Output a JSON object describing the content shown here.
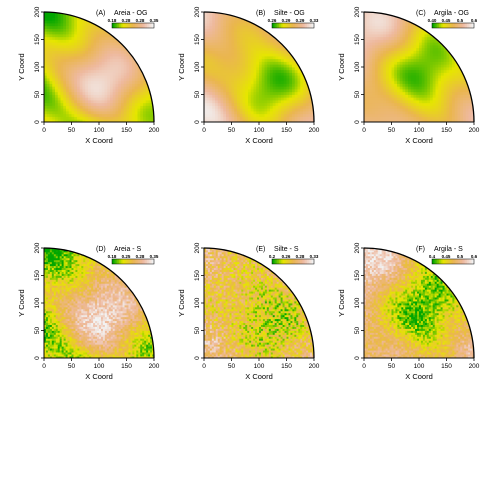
{
  "figure": {
    "layout": {
      "rows": 2,
      "cols": 3
    }
  },
  "chart_data": [
    {
      "type": "heatmap",
      "panel_label": "(A)",
      "title": "Areia - OG",
      "xlabel": "X Coord",
      "ylabel": "Y Coord",
      "xlim": [
        0,
        200
      ],
      "ylim": [
        0,
        200
      ],
      "xticks": [
        "0",
        "50",
        "100",
        "150",
        "200"
      ],
      "yticks": [
        "0",
        "50",
        "100",
        "150",
        "200"
      ],
      "legend_ticks": [
        "0.18",
        "0.28",
        "0.28",
        "0.35"
      ],
      "colormap": [
        "#00A600",
        "#E6E600",
        "#EAB64E",
        "#EEB99F",
        "#F2F2F2"
      ],
      "domain_shape": "quarter-circle",
      "smooth": true,
      "pattern": "high",
      "seed": 11
    },
    {
      "type": "heatmap",
      "panel_label": "(B)",
      "title": "Silte - OG",
      "xlabel": "X Coord",
      "ylabel": "Y Coord",
      "xlim": [
        0,
        200
      ],
      "ylim": [
        0,
        200
      ],
      "xticks": [
        "0",
        "50",
        "100",
        "150",
        "200"
      ],
      "yticks": [
        "0",
        "50",
        "100",
        "150",
        "200"
      ],
      "legend_ticks": [
        "0.26",
        "0.29",
        "0.29",
        "0.33"
      ],
      "colormap": [
        "#00A600",
        "#E6E600",
        "#EAB64E",
        "#EEB99F",
        "#F2F2F2"
      ],
      "domain_shape": "quarter-circle",
      "smooth": true,
      "pattern": "low",
      "seed": 23
    },
    {
      "type": "heatmap",
      "panel_label": "(C)",
      "title": "Argila - OG",
      "xlabel": "X Coord",
      "ylabel": "Y Coord",
      "xlim": [
        0,
        200
      ],
      "ylim": [
        0,
        200
      ],
      "xticks": [
        "0",
        "50",
        "100",
        "150",
        "200"
      ],
      "yticks": [
        "0",
        "50",
        "100",
        "150",
        "200"
      ],
      "legend_ticks": [
        "0.40",
        "0.45",
        "0.5",
        "0.6"
      ],
      "colormap": [
        "#00A600",
        "#E6E600",
        "#EAB64E",
        "#EEB99F",
        "#F2F2F2"
      ],
      "domain_shape": "quarter-circle",
      "smooth": true,
      "pattern": "low",
      "seed": 37
    },
    {
      "type": "heatmap",
      "panel_label": "(D)",
      "title": "Areia - S",
      "xlabel": "X Coord",
      "ylabel": "Y Coord",
      "xlim": [
        0,
        200
      ],
      "ylim": [
        0,
        200
      ],
      "xticks": [
        "0",
        "50",
        "100",
        "150",
        "200"
      ],
      "yticks": [
        "0",
        "50",
        "100",
        "150",
        "200"
      ],
      "legend_ticks": [
        "0.18",
        "0.25",
        "0.28",
        "0.35"
      ],
      "colormap": [
        "#00A600",
        "#E6E600",
        "#EAB64E",
        "#EEB99F",
        "#F2F2F2"
      ],
      "domain_shape": "quarter-circle",
      "smooth": false,
      "pattern": "high",
      "seed": 11
    },
    {
      "type": "heatmap",
      "panel_label": "(E)",
      "title": "Silte - S",
      "xlabel": "X Coord",
      "ylabel": "Y Coord",
      "xlim": [
        0,
        200
      ],
      "ylim": [
        0,
        200
      ],
      "xticks": [
        "0",
        "50",
        "100",
        "150",
        "200"
      ],
      "yticks": [
        "0",
        "50",
        "100",
        "150",
        "200"
      ],
      "legend_ticks": [
        "0.2",
        "0.26",
        "0.28",
        "0.33"
      ],
      "colormap": [
        "#00A600",
        "#E6E600",
        "#EAB64E",
        "#EEB99F",
        "#F2F2F2"
      ],
      "domain_shape": "quarter-circle",
      "smooth": false,
      "pattern": "noisy",
      "seed": 23
    },
    {
      "type": "heatmap",
      "panel_label": "(F)",
      "title": "Argila - S",
      "xlabel": "X Coord",
      "ylabel": "Y Coord",
      "xlim": [
        0,
        200
      ],
      "ylim": [
        0,
        200
      ],
      "xticks": [
        "0",
        "50",
        "100",
        "150",
        "200"
      ],
      "yticks": [
        "0",
        "50",
        "100",
        "150",
        "200"
      ],
      "legend_ticks": [
        "0.4",
        "0.45",
        "0.5",
        "0.6"
      ],
      "colormap": [
        "#00A600",
        "#E6E600",
        "#EAB64E",
        "#EEB99F",
        "#F2F2F2"
      ],
      "domain_shape": "quarter-circle",
      "smooth": false,
      "pattern": "low",
      "seed": 37
    }
  ]
}
